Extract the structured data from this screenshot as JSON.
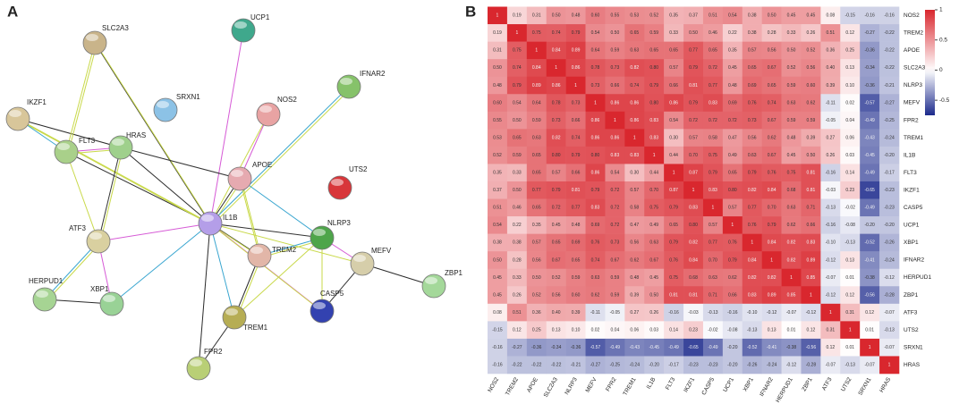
{
  "panels": [
    "A",
    "B"
  ],
  "network": {
    "nodes": [
      "UCP1",
      "SLC2A3",
      "IFNAR2",
      "SRXN1",
      "NOS2",
      "IKZF1",
      "FLT3",
      "HRAS",
      "APOE",
      "UTS2",
      "IL1B",
      "ATF3",
      "NLRP3",
      "TREM2",
      "MEFV",
      "ZBP1",
      "HERPUD1",
      "XBP1",
      "CASP5",
      "TREM1",
      "FPR2"
    ]
  },
  "chart_data": {
    "type": "heatmap",
    "categories": [
      "NOS2",
      "TREM2",
      "APOE",
      "SLC2A3",
      "NLRP3",
      "MEFV",
      "FPR2",
      "TREM1",
      "IL1B",
      "FLT3",
      "IKZF1",
      "CASP5",
      "UCP1",
      "XBP1",
      "IFNAR2",
      "HERPUD1",
      "ZBP1",
      "ATF3",
      "UTS2",
      "SRXN1",
      "HRAS"
    ],
    "values": [
      [
        1,
        0.19,
        0.31,
        0.5,
        0.48,
        0.6,
        0.55,
        0.53,
        0.52,
        0.35,
        0.37,
        0.51,
        0.54,
        0.38,
        0.5,
        0.45,
        0.45,
        0.08,
        -0.15,
        -0.16,
        -0.16
      ],
      [
        0.19,
        1,
        0.75,
        0.74,
        0.79,
        0.54,
        0.5,
        0.65,
        0.59,
        0.33,
        0.5,
        0.46,
        0.22,
        0.38,
        0.28,
        0.33,
        0.26,
        0.51,
        0.12,
        -0.27,
        -0.22
      ],
      [
        0.31,
        0.75,
        1,
        0.84,
        0.89,
        0.64,
        0.59,
        0.63,
        0.65,
        0.65,
        0.77,
        0.65,
        0.35,
        0.57,
        0.56,
        0.5,
        0.52,
        0.36,
        0.25,
        -0.36,
        -0.22
      ],
      [
        0.5,
        0.74,
        0.84,
        1,
        0.86,
        0.78,
        0.73,
        0.82,
        0.8,
        0.57,
        0.79,
        0.72,
        0.45,
        0.65,
        0.67,
        0.52,
        0.56,
        0.4,
        0.13,
        -0.34,
        -0.22
      ],
      [
        0.48,
        0.79,
        0.89,
        0.86,
        1,
        0.73,
        0.66,
        0.74,
        0.79,
        0.66,
        0.81,
        0.77,
        0.48,
        0.69,
        0.65,
        0.59,
        0.6,
        0.39,
        0.1,
        -0.36,
        -0.21
      ],
      [
        0.6,
        0.54,
        0.64,
        0.78,
        0.73,
        1,
        0.86,
        0.86,
        0.8,
        0.86,
        0.79,
        0.83,
        0.69,
        0.76,
        0.74,
        0.63,
        0.62,
        -0.11,
        0.02,
        -0.57,
        -0.27
      ],
      [
        0.55,
        0.5,
        0.59,
        0.73,
        0.66,
        0.86,
        1,
        0.86,
        0.83,
        0.54,
        0.72,
        0.72,
        0.72,
        0.73,
        0.67,
        0.59,
        0.59,
        -0.05,
        0.04,
        -0.49,
        -0.25
      ],
      [
        0.53,
        0.65,
        0.63,
        0.82,
        0.74,
        0.86,
        0.86,
        1,
        0.83,
        0.3,
        0.57,
        0.58,
        0.47,
        0.56,
        0.62,
        0.48,
        0.39,
        0.27,
        0.06,
        -0.43,
        -0.24
      ],
      [
        0.52,
        0.59,
        0.65,
        0.8,
        0.79,
        0.8,
        0.83,
        0.83,
        1,
        0.44,
        0.7,
        0.75,
        0.49,
        0.63,
        0.67,
        0.45,
        0.5,
        0.26,
        0.03,
        -0.45,
        -0.2
      ],
      [
        0.35,
        0.33,
        0.65,
        0.57,
        0.66,
        0.86,
        0.54,
        0.3,
        0.44,
        1,
        0.87,
        0.79,
        0.65,
        0.79,
        0.76,
        0.75,
        0.81,
        -0.16,
        0.14,
        -0.49,
        -0.17
      ],
      [
        0.37,
        0.5,
        0.77,
        0.79,
        0.81,
        0.79,
        0.72,
        0.57,
        0.7,
        0.87,
        1,
        0.83,
        0.8,
        0.82,
        0.84,
        0.68,
        0.81,
        -0.03,
        0.23,
        -0.65,
        -0.23
      ],
      [
        0.51,
        0.46,
        0.65,
        0.72,
        0.77,
        0.83,
        0.72,
        0.58,
        0.75,
        0.79,
        0.83,
        1,
        0.57,
        0.77,
        0.7,
        0.63,
        0.71,
        -0.13,
        -0.02,
        -0.49,
        -0.23
      ],
      [
        0.54,
        0.22,
        0.35,
        0.45,
        0.48,
        0.69,
        0.72,
        0.47,
        0.49,
        0.65,
        0.8,
        0.57,
        1,
        0.76,
        0.79,
        0.62,
        0.66,
        -0.16,
        -0.08,
        -0.2,
        -0.2
      ],
      [
        0.38,
        0.38,
        0.57,
        0.65,
        0.69,
        0.76,
        0.73,
        0.56,
        0.63,
        0.79,
        0.82,
        0.77,
        0.76,
        1,
        0.84,
        0.82,
        0.83,
        -0.1,
        -0.13,
        -0.52,
        -0.26
      ],
      [
        0.5,
        0.28,
        0.56,
        0.67,
        0.65,
        0.74,
        0.67,
        0.62,
        0.67,
        0.76,
        0.84,
        0.7,
        0.79,
        0.84,
        1,
        0.82,
        0.89,
        -0.12,
        0.13,
        -0.41,
        -0.24
      ],
      [
        0.45,
        0.33,
        0.5,
        0.52,
        0.59,
        0.63,
        0.59,
        0.48,
        0.45,
        0.75,
        0.68,
        0.63,
        0.62,
        0.82,
        0.82,
        1,
        0.85,
        -0.07,
        0.01,
        -0.38,
        -0.12
      ],
      [
        0.45,
        0.26,
        0.52,
        0.56,
        0.6,
        0.62,
        0.59,
        0.39,
        0.5,
        0.81,
        0.81,
        0.71,
        0.66,
        0.83,
        0.89,
        0.85,
        1,
        -0.12,
        0.12,
        -0.56,
        -0.28
      ],
      [
        0.08,
        0.51,
        0.36,
        0.4,
        0.39,
        -0.11,
        -0.05,
        0.27,
        0.26,
        -0.16,
        -0.03,
        -0.13,
        -0.16,
        -0.1,
        -0.12,
        -0.07,
        -0.12,
        1,
        0.31,
        0.12,
        -0.07
      ],
      [
        -0.15,
        0.12,
        0.25,
        0.13,
        0.1,
        0.02,
        0.04,
        0.06,
        0.03,
        0.14,
        0.23,
        -0.02,
        -0.08,
        -0.13,
        0.13,
        0.01,
        0.12,
        0.31,
        1,
        0.01,
        -0.13
      ],
      [
        -0.16,
        -0.27,
        -0.36,
        -0.34,
        -0.36,
        -0.57,
        -0.49,
        -0.43,
        -0.45,
        -0.49,
        -0.65,
        -0.49,
        -0.2,
        -0.52,
        -0.41,
        -0.38,
        -0.56,
        0.12,
        0.01,
        1,
        -0.07
      ],
      [
        -0.16,
        -0.22,
        -0.22,
        -0.22,
        -0.21,
        -0.27,
        -0.25,
        -0.24,
        -0.2,
        -0.17,
        -0.23,
        -0.23,
        -0.2,
        -0.26,
        -0.24,
        -0.12,
        -0.28,
        -0.07,
        -0.13,
        -0.07,
        1
      ]
    ],
    "value_labels": [
      [
        "1",
        "0.19",
        "0.31",
        "0.50",
        "0.48",
        "0.60",
        "0.55",
        "0.53",
        "0.52",
        "0.35",
        "0.37",
        "0.51",
        "0.54",
        "0.38",
        "0.50",
        "0.45",
        "0.45",
        "0.08",
        "-0.15",
        "-0.16",
        "-0.16"
      ],
      [
        "0.19",
        "1",
        "0.75",
        "0.74",
        "0.79",
        "0.54",
        "0.50",
        "0.65",
        "0.59",
        "0.33",
        "0.50",
        "0.46",
        "0.22",
        "0.38",
        "0.28",
        "0.33",
        "0.26",
        "0.51",
        "0.12",
        "-0.27",
        "-0.22"
      ],
      [
        "0.31",
        "0.75",
        "1",
        "0.84",
        "0.89",
        "0.64",
        "0.59",
        "0.63",
        "0.65",
        "0.65",
        "0.77",
        "0.65",
        "0.35",
        "0.57",
        "0.56",
        "0.50",
        "0.52",
        "0.36",
        "0.25",
        "-0.36",
        "-0.22"
      ],
      [
        "0.50",
        "0.74",
        "0.84",
        "1",
        "0.86",
        "0.78",
        "0.73",
        "0.82",
        "0.80",
        "0.57",
        "0.79",
        "0.72",
        "0.45",
        "0.65",
        "0.67",
        "0.52",
        "0.56",
        "0.40",
        "0.13",
        "-0.34",
        "-0.22"
      ],
      [
        "0.48",
        "0.79",
        "0.89",
        "0.86",
        "1",
        "0.73",
        "0.66",
        "0.74",
        "0.79",
        "0.66",
        "0.81",
        "0.77",
        "0.48",
        "0.69",
        "0.65",
        "0.59",
        "0.60",
        "0.39",
        "0.10",
        "-0.36",
        "-0.21"
      ],
      [
        "0.60",
        "0.54",
        "0.64",
        "0.78",
        "0.73",
        "1",
        "0.86",
        "0.86",
        "0.80",
        "0.86",
        "0.79",
        "0.83",
        "0.69",
        "0.76",
        "0.74",
        "0.63",
        "0.62",
        "-0.11",
        "0.02",
        "-0.57",
        "-0.27"
      ],
      [
        "0.55",
        "0.50",
        "0.59",
        "0.73",
        "0.66",
        "0.86",
        "1",
        "0.86",
        "0.83",
        "0.54",
        "0.72",
        "0.72",
        "0.72",
        "0.73",
        "0.67",
        "0.59",
        "0.59",
        "-0.05",
        "0.04",
        "-0.49",
        "-0.25"
      ],
      [
        "0.53",
        "0.65",
        "0.63",
        "0.82",
        "0.74",
        "0.86",
        "0.86",
        "1",
        "0.83",
        "0.30",
        "0.57",
        "0.58",
        "0.47",
        "0.56",
        "0.62",
        "0.48",
        "0.39",
        "0.27",
        "0.06",
        "-0.43",
        "-0.24"
      ],
      [
        "0.52",
        "0.59",
        "0.65",
        "0.80",
        "0.79",
        "0.80",
        "0.83",
        "0.83",
        "1",
        "0.44",
        "0.70",
        "0.75",
        "0.49",
        "0.63",
        "0.67",
        "0.45",
        "0.50",
        "0.26",
        "0.03",
        "-0.45",
        "-0.20"
      ],
      [
        "0.35",
        "0.33",
        "0.65",
        "0.57",
        "0.66",
        "0.86",
        "0.54",
        "0.30",
        "0.44",
        "1",
        "0.87",
        "0.79",
        "0.65",
        "0.79",
        "0.76",
        "0.75",
        "0.81",
        "-0.16",
        "0.14",
        "-0.49",
        "-0.17"
      ],
      [
        "0.37",
        "0.50",
        "0.77",
        "0.79",
        "0.81",
        "0.79",
        "0.72",
        "0.57",
        "0.70",
        "0.87",
        "1",
        "0.83",
        "0.80",
        "0.82",
        "0.84",
        "0.68",
        "0.81",
        "-0.03",
        "0.23",
        "-0.65",
        "-0.23"
      ],
      [
        "0.51",
        "0.46",
        "0.65",
        "0.72",
        "0.77",
        "0.83",
        "0.72",
        "0.58",
        "0.75",
        "0.79",
        "0.83",
        "1",
        "0.57",
        "0.77",
        "0.70",
        "0.63",
        "0.71",
        "-0.13",
        "-0.02",
        "-0.49",
        "-0.23"
      ],
      [
        "0.54",
        "0.22",
        "0.35",
        "0.45",
        "0.48",
        "0.69",
        "0.72",
        "0.47",
        "0.49",
        "0.65",
        "0.80",
        "0.57",
        "1",
        "0.76",
        "0.79",
        "0.62",
        "0.66",
        "-0.16",
        "-0.08",
        "-0.20",
        "-0.20"
      ],
      [
        "0.38",
        "0.38",
        "0.57",
        "0.65",
        "0.69",
        "0.76",
        "0.73",
        "0.56",
        "0.63",
        "0.79",
        "0.82",
        "0.77",
        "0.76",
        "1",
        "0.84",
        "0.82",
        "0.83",
        "-0.10",
        "-0.13",
        "-0.52",
        "-0.26"
      ],
      [
        "0.50",
        "0.28",
        "0.56",
        "0.67",
        "0.65",
        "0.74",
        "0.67",
        "0.62",
        "0.67",
        "0.76",
        "0.84",
        "0.70",
        "0.79",
        "0.84",
        "1",
        "0.82",
        "0.89",
        "-0.12",
        "0.13",
        "-0.41",
        "-0.24"
      ],
      [
        "0.45",
        "0.33",
        "0.50",
        "0.52",
        "0.59",
        "0.63",
        "0.59",
        "0.48",
        "0.45",
        "0.75",
        "0.68",
        "0.63",
        "0.62",
        "0.82",
        "0.82",
        "1",
        "0.85",
        "-0.07",
        "0.01",
        "-0.38",
        "-0.12"
      ],
      [
        "0.45",
        "0.26",
        "0.52",
        "0.56",
        "0.60",
        "0.62",
        "0.59",
        "0.39",
        "0.50",
        "0.81",
        "0.81",
        "0.71",
        "0.66",
        "0.83",
        "0.89",
        "0.85",
        "1",
        "-0.12",
        "0.12",
        "-0.56",
        "-0.28"
      ],
      [
        "0.08",
        "0.51",
        "0.36",
        "0.40",
        "0.39",
        "-0.11",
        "-0.05",
        "0.27",
        "0.26",
        "-0.16",
        "-0.03",
        "-0.13",
        "-0.16",
        "-0.10",
        "-0.12",
        "-0.07",
        "-0.12",
        "1",
        "0.31",
        "0.12",
        "-0.07"
      ],
      [
        "-0.15",
        "0.12",
        "0.25",
        "0.13",
        "0.10",
        "0.02",
        "0.04",
        "0.06",
        "0.03",
        "0.14",
        "0.23",
        "-0.02",
        "-0.08",
        "-0.13",
        "0.13",
        "0.01",
        "0.12",
        "0.31",
        "1",
        "0.01",
        "-0.13"
      ],
      [
        "-0.16",
        "-0.27",
        "-0.36",
        "-0.34",
        "-0.36",
        "-0.57",
        "-0.49",
        "-0.43",
        "-0.45",
        "-0.49",
        "-0.65",
        "-0.49",
        "-0.20",
        "-0.52",
        "-0.41",
        "-0.38",
        "-0.56",
        "0.12",
        "0.01",
        "1",
        "-0.07"
      ],
      [
        "-0.16",
        "-0.22",
        "-0.22",
        "-0.22",
        "-0.21",
        "-0.27",
        "-0.25",
        "-0.24",
        "-0.20",
        "-0.17",
        "-0.23",
        "-0.23",
        "-0.20",
        "-0.26",
        "-0.24",
        "-0.12",
        "-0.28",
        "-0.07",
        "-0.13",
        "-0.07",
        "1"
      ]
    ],
    "zlim": [
      -0.75,
      1
    ],
    "zticks": [
      1,
      0.5,
      0,
      -0.5
    ],
    "colors": {
      "low": "#1c2a8c",
      "mid": "#ffffff",
      "high": "#d9272e"
    }
  }
}
